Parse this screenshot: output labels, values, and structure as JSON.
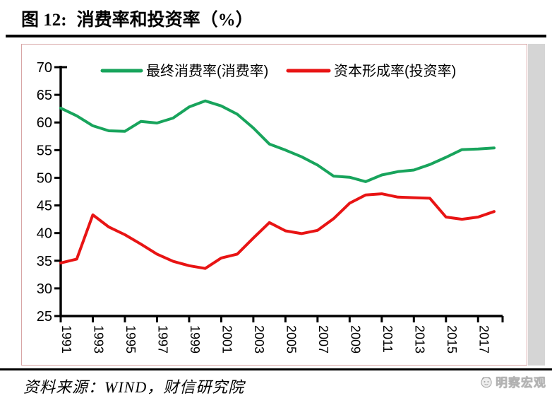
{
  "title": {
    "prefix": "图 12:",
    "text": "消费率和投资率（%）"
  },
  "source_note": "资料来源：WIND，财信研究院",
  "watermark": {
    "icon": "mingcha-logo-icon",
    "text": "明察宏观"
  },
  "colors": {
    "consumption_line": "#18a45c",
    "investment_line": "#e81414",
    "axis": "#000000",
    "chart_border": "#d8a6a6",
    "right_margin_band": "#d5d5d5"
  },
  "chart_data": {
    "type": "line",
    "x": [
      1991,
      1992,
      1993,
      1994,
      1995,
      1996,
      1997,
      1998,
      1999,
      2000,
      2001,
      2002,
      2003,
      2004,
      2005,
      2006,
      2007,
      2008,
      2009,
      2010,
      2011,
      2012,
      2013,
      2014,
      2015,
      2016,
      2017,
      2018
    ],
    "series": [
      {
        "name": "最终消费率(消费率)",
        "color": "#18a45c",
        "values": [
          62.6,
          61.2,
          59.4,
          58.5,
          58.4,
          60.2,
          59.9,
          60.8,
          62.8,
          63.9,
          63.0,
          61.5,
          59.0,
          56.1,
          55.0,
          53.8,
          52.3,
          50.3,
          50.1,
          49.3,
          50.5,
          51.1,
          51.4,
          52.4,
          53.7,
          55.1,
          55.2,
          55.4
        ]
      },
      {
        "name": "资本形成率(投资率)",
        "color": "#e81414",
        "values": [
          34.6,
          35.3,
          43.3,
          41.1,
          39.7,
          38.0,
          36.2,
          34.9,
          34.1,
          33.6,
          35.5,
          36.2,
          39.1,
          41.9,
          40.4,
          39.9,
          40.5,
          42.6,
          45.4,
          46.9,
          47.1,
          46.5,
          46.4,
          46.3,
          42.9,
          42.5,
          42.9,
          43.9
        ]
      }
    ],
    "ylim": [
      25,
      70
    ],
    "yticks": [
      70,
      65,
      60,
      55,
      50,
      45,
      40,
      35,
      30,
      25
    ],
    "xtick_labels": [
      "1991",
      "1993",
      "1995",
      "1997",
      "1999",
      "2001",
      "2003",
      "2005",
      "2007",
      "2009",
      "2011",
      "2013",
      "2015",
      "2017"
    ],
    "grid": false,
    "legend_position": "top-inside",
    "xlabel": "",
    "ylabel": ""
  }
}
